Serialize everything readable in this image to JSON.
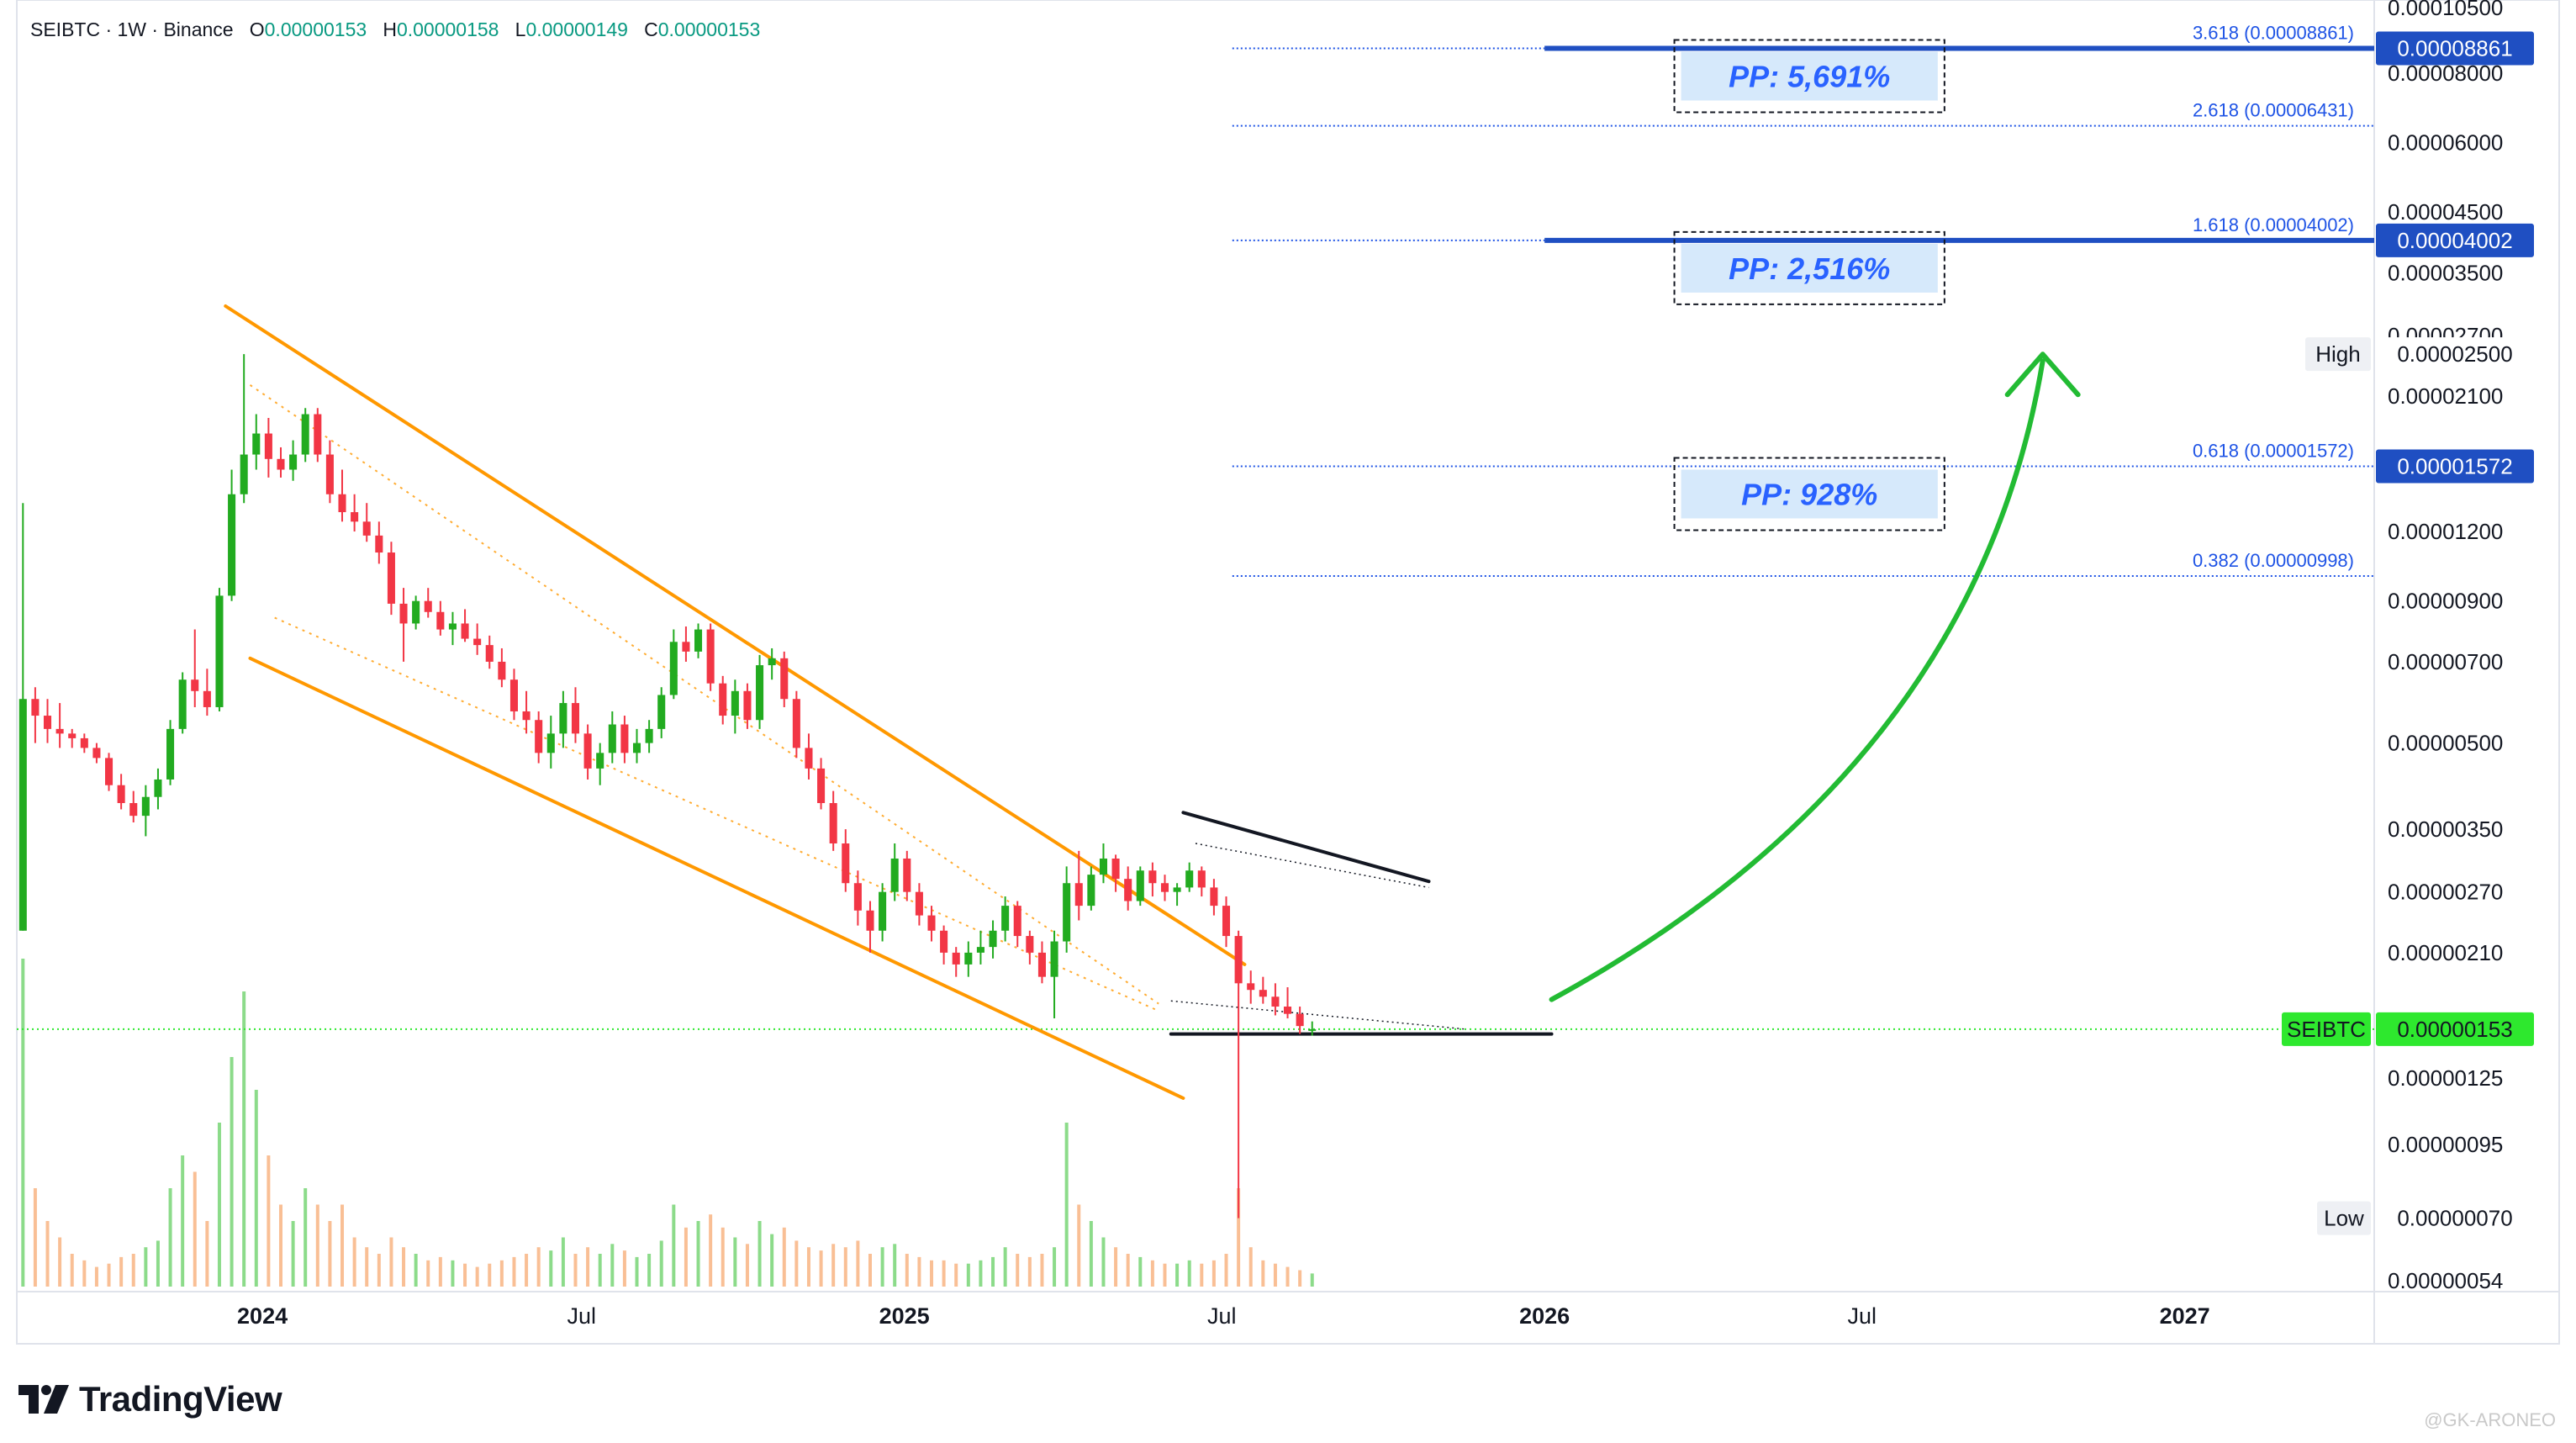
{
  "header": {
    "symbol_line": "SEIBTC · 1W · Binance",
    "open_label": "O",
    "open_value": "0.00000153",
    "high_label": "H",
    "high_value": "0.00000158",
    "low_label": "L",
    "low_value": "0.00000149",
    "close_label": "C",
    "close_value": "0.00000153"
  },
  "branding": {
    "name": "TradingView",
    "watermark": "@GK-ARONEO"
  },
  "colors": {
    "up": "#22ab20",
    "down": "#f23645",
    "channel": "#ff9800",
    "fib": "#1e53e5",
    "fib_thick": "#1f4fc2",
    "current": "#2ee82e",
    "arrow": "#22bb33",
    "pp_text": "#2962ff",
    "pp_bg": "#d6e9fb"
  },
  "chart_data": {
    "type": "candlestick",
    "title": "SEIBTC · 1W · Binance",
    "y_scale": "log",
    "ylim": [
      5.2e-07,
      0.0001075
    ],
    "y_tick_labels": [
      "0.00010500",
      "0.00008000",
      "0.00006000",
      "0.00004500",
      "0.00003500",
      "0.00002700",
      "0.00002100",
      "0.00001200",
      "0.00000900",
      "0.00000700",
      "0.00000500",
      "0.00000350",
      "0.00000270",
      "0.00000210",
      "0.00000125",
      "0.00000095",
      "0.00000054"
    ],
    "x_tick_labels": [
      {
        "date": "2024-01-01",
        "label": "2024",
        "bold": true
      },
      {
        "date": "2024-07-01",
        "label": "Jul",
        "bold": false
      },
      {
        "date": "2025-01-01",
        "label": "2025",
        "bold": true
      },
      {
        "date": "2025-07-01",
        "label": "Jul",
        "bold": false
      },
      {
        "date": "2026-01-01",
        "label": "2026",
        "bold": true
      },
      {
        "date": "2026-07-01",
        "label": "Jul",
        "bold": false
      },
      {
        "date": "2027-01-01",
        "label": "2027",
        "bold": true
      }
    ],
    "x_range": [
      "2023-08-14",
      "2027-04-19"
    ],
    "first_candle_date": "2023-08-14",
    "price_tags": [
      {
        "label": "",
        "value": "0.00008861",
        "style": "blue"
      },
      {
        "label": "",
        "value": "0.00004002",
        "style": "blue"
      },
      {
        "label": "High",
        "value": "0.00002500",
        "style": "plain"
      },
      {
        "label": "",
        "value": "0.00001572",
        "style": "blue"
      },
      {
        "label": "SEIBTC",
        "value": "0.00000153",
        "style": "green"
      },
      {
        "label": "Low",
        "value": "0.00000070",
        "style": "plain"
      }
    ],
    "fib_levels": [
      {
        "label": "3.618 (0.00008861)",
        "value": 8.861e-05,
        "style": "thick"
      },
      {
        "label": "2.618 (0.00006431)",
        "value": 6.431e-05,
        "style": "dotted"
      },
      {
        "label": "1.618 (0.00004002)",
        "value": 4.002e-05,
        "style": "thick"
      },
      {
        "label": "0.618 (0.00001572)",
        "value": 1.572e-05,
        "style": "dotted"
      },
      {
        "label": "0.382 (0.00000998)",
        "value": 9.98e-06,
        "style": "dotted"
      }
    ],
    "pp_boxes": [
      {
        "label": "PP: 5,691%",
        "value": 8.861e-05
      },
      {
        "label": "PP: 2,516%",
        "value": 4.002e-05
      },
      {
        "label": "PP: 928%",
        "value": 1.572e-05
      }
    ],
    "current_price": 1.53e-06,
    "candles": [
      {
        "o": 2.3e-06,
        "h": 1.35e-05,
        "l": 2.3e-06,
        "c": 6e-06,
        "v": 100
      },
      {
        "o": 6e-06,
        "h": 6.3e-06,
        "l": 5e-06,
        "c": 5.6e-06,
        "v": 30
      },
      {
        "o": 5.6e-06,
        "h": 6e-06,
        "l": 5e-06,
        "c": 5.3e-06,
        "v": 20
      },
      {
        "o": 5.3e-06,
        "h": 5.9e-06,
        "l": 4.9e-06,
        "c": 5.2e-06,
        "v": 15
      },
      {
        "o": 5.2e-06,
        "h": 5.3e-06,
        "l": 4.9e-06,
        "c": 5.1e-06,
        "v": 10
      },
      {
        "o": 5.1e-06,
        "h": 5.2e-06,
        "l": 4.8e-06,
        "c": 4.9e-06,
        "v": 8
      },
      {
        "o": 4.9e-06,
        "h": 5e-06,
        "l": 4.6e-06,
        "c": 4.7e-06,
        "v": 6
      },
      {
        "o": 4.7e-06,
        "h": 4.8e-06,
        "l": 4.1e-06,
        "c": 4.2e-06,
        "v": 7
      },
      {
        "o": 4.2e-06,
        "h": 4.4e-06,
        "l": 3.8e-06,
        "c": 3.9e-06,
        "v": 9
      },
      {
        "o": 3.9e-06,
        "h": 4.1e-06,
        "l": 3.6e-06,
        "c": 3.7e-06,
        "v": 10
      },
      {
        "o": 3.7e-06,
        "h": 4.2e-06,
        "l": 3.4e-06,
        "c": 4e-06,
        "v": 12
      },
      {
        "o": 4e-06,
        "h": 4.5e-06,
        "l": 3.8e-06,
        "c": 4.3e-06,
        "v": 14
      },
      {
        "o": 4.3e-06,
        "h": 5.5e-06,
        "l": 4.2e-06,
        "c": 5.3e-06,
        "v": 30
      },
      {
        "o": 5.3e-06,
        "h": 6.7e-06,
        "l": 5.2e-06,
        "c": 6.5e-06,
        "v": 40
      },
      {
        "o": 6.5e-06,
        "h": 8e-06,
        "l": 5.8e-06,
        "c": 6.2e-06,
        "v": 35
      },
      {
        "o": 6.2e-06,
        "h": 6.8e-06,
        "l": 5.6e-06,
        "c": 5.8e-06,
        "v": 20
      },
      {
        "o": 5.8e-06,
        "h": 9.5e-06,
        "l": 5.7e-06,
        "c": 9.2e-06,
        "v": 50
      },
      {
        "o": 9.2e-06,
        "h": 1.55e-05,
        "l": 9e-06,
        "c": 1.4e-05,
        "v": 70
      },
      {
        "o": 1.4e-05,
        "h": 2.5e-05,
        "l": 1.35e-05,
        "c": 1.65e-05,
        "v": 90
      },
      {
        "o": 1.65e-05,
        "h": 1.95e-05,
        "l": 1.55e-05,
        "c": 1.8e-05,
        "v": 60
      },
      {
        "o": 1.8e-05,
        "h": 1.92e-05,
        "l": 1.5e-05,
        "c": 1.62e-05,
        "v": 40
      },
      {
        "o": 1.62e-05,
        "h": 1.7e-05,
        "l": 1.5e-05,
        "c": 1.55e-05,
        "v": 25
      },
      {
        "o": 1.55e-05,
        "h": 1.75e-05,
        "l": 1.48e-05,
        "c": 1.65e-05,
        "v": 20
      },
      {
        "o": 1.65e-05,
        "h": 2e-05,
        "l": 1.6e-05,
        "c": 1.95e-05,
        "v": 30
      },
      {
        "o": 1.95e-05,
        "h": 2e-05,
        "l": 1.6e-05,
        "c": 1.65e-05,
        "v": 25
      },
      {
        "o": 1.65e-05,
        "h": 1.75e-05,
        "l": 1.35e-05,
        "c": 1.4e-05,
        "v": 20
      },
      {
        "o": 1.4e-05,
        "h": 1.55e-05,
        "l": 1.25e-05,
        "c": 1.3e-05,
        "v": 25
      },
      {
        "o": 1.3e-05,
        "h": 1.4e-05,
        "l": 1.2e-05,
        "c": 1.25e-05,
        "v": 15
      },
      {
        "o": 1.25e-05,
        "h": 1.35e-05,
        "l": 1.15e-05,
        "c": 1.18e-05,
        "v": 12
      },
      {
        "o": 1.18e-05,
        "h": 1.25e-05,
        "l": 1.05e-05,
        "c": 1.1e-05,
        "v": 10
      },
      {
        "o": 1.1e-05,
        "h": 1.15e-05,
        "l": 8.5e-06,
        "c": 8.9e-06,
        "v": 15
      },
      {
        "o": 8.9e-06,
        "h": 9.5e-06,
        "l": 7e-06,
        "c": 8.2e-06,
        "v": 12
      },
      {
        "o": 8.2e-06,
        "h": 9.2e-06,
        "l": 8e-06,
        "c": 9e-06,
        "v": 10
      },
      {
        "o": 9e-06,
        "h": 9.5e-06,
        "l": 8.4e-06,
        "c": 8.6e-06,
        "v": 8
      },
      {
        "o": 8.6e-06,
        "h": 9e-06,
        "l": 7.8e-06,
        "c": 8e-06,
        "v": 9
      },
      {
        "o": 8e-06,
        "h": 8.6e-06,
        "l": 7.5e-06,
        "c": 8.2e-06,
        "v": 8
      },
      {
        "o": 8.2e-06,
        "h": 8.7e-06,
        "l": 7.6e-06,
        "c": 7.7e-06,
        "v": 7
      },
      {
        "o": 7.7e-06,
        "h": 8.2e-06,
        "l": 7.2e-06,
        "c": 7.5e-06,
        "v": 6
      },
      {
        "o": 7.5e-06,
        "h": 7.8e-06,
        "l": 6.8e-06,
        "c": 7e-06,
        "v": 7
      },
      {
        "o": 7e-06,
        "h": 7.4e-06,
        "l": 6.3e-06,
        "c": 6.5e-06,
        "v": 8
      },
      {
        "o": 6.5e-06,
        "h": 6.8e-06,
        "l": 5.5e-06,
        "c": 5.7e-06,
        "v": 9
      },
      {
        "o": 5.7e-06,
        "h": 6.2e-06,
        "l": 5.2e-06,
        "c": 5.5e-06,
        "v": 10
      },
      {
        "o": 5.5e-06,
        "h": 5.7e-06,
        "l": 4.6e-06,
        "c": 4.8e-06,
        "v": 12
      },
      {
        "o": 4.8e-06,
        "h": 5.6e-06,
        "l": 4.5e-06,
        "c": 5.2e-06,
        "v": 11
      },
      {
        "o": 5.2e-06,
        "h": 6.2e-06,
        "l": 4.9e-06,
        "c": 5.9e-06,
        "v": 15
      },
      {
        "o": 5.9e-06,
        "h": 6.3e-06,
        "l": 5e-06,
        "c": 5.2e-06,
        "v": 10
      },
      {
        "o": 5.2e-06,
        "h": 5.4e-06,
        "l": 4.3e-06,
        "c": 4.5e-06,
        "v": 12
      },
      {
        "o": 4.5e-06,
        "h": 5e-06,
        "l": 4.2e-06,
        "c": 4.8e-06,
        "v": 10
      },
      {
        "o": 4.8e-06,
        "h": 5.7e-06,
        "l": 4.6e-06,
        "c": 5.4e-06,
        "v": 13
      },
      {
        "o": 5.4e-06,
        "h": 5.6e-06,
        "l": 4.6e-06,
        "c": 4.8e-06,
        "v": 11
      },
      {
        "o": 4.8e-06,
        "h": 5.3e-06,
        "l": 4.6e-06,
        "c": 5e-06,
        "v": 9
      },
      {
        "o": 5e-06,
        "h": 5.5e-06,
        "l": 4.8e-06,
        "c": 5.3e-06,
        "v": 10
      },
      {
        "o": 5.3e-06,
        "h": 6.3e-06,
        "l": 5.1e-06,
        "c": 6.1e-06,
        "v": 14
      },
      {
        "o": 6.1e-06,
        "h": 8e-06,
        "l": 6e-06,
        "c": 7.6e-06,
        "v": 25
      },
      {
        "o": 7.6e-06,
        "h": 8.1e-06,
        "l": 7e-06,
        "c": 7.3e-06,
        "v": 18
      },
      {
        "o": 7.3e-06,
        "h": 8.2e-06,
        "l": 7.1e-06,
        "c": 8e-06,
        "v": 20
      },
      {
        "o": 8e-06,
        "h": 8.2e-06,
        "l": 6.2e-06,
        "c": 6.4e-06,
        "v": 22
      },
      {
        "o": 6.4e-06,
        "h": 6.6e-06,
        "l": 5.4e-06,
        "c": 5.6e-06,
        "v": 18
      },
      {
        "o": 5.6e-06,
        "h": 6.5e-06,
        "l": 5.2e-06,
        "c": 6.2e-06,
        "v": 15
      },
      {
        "o": 6.2e-06,
        "h": 6.4e-06,
        "l": 5.3e-06,
        "c": 5.5e-06,
        "v": 13
      },
      {
        "o": 5.5e-06,
        "h": 7.2e-06,
        "l": 5.3e-06,
        "c": 6.9e-06,
        "v": 20
      },
      {
        "o": 6.9e-06,
        "h": 7.4e-06,
        "l": 6.5e-06,
        "c": 7.1e-06,
        "v": 16
      },
      {
        "o": 7.1e-06,
        "h": 7.3e-06,
        "l": 5.8e-06,
        "c": 6e-06,
        "v": 18
      },
      {
        "o": 6e-06,
        "h": 6.2e-06,
        "l": 4.7e-06,
        "c": 4.9e-06,
        "v": 14
      },
      {
        "o": 4.9e-06,
        "h": 5.2e-06,
        "l": 4.3e-06,
        "c": 4.5e-06,
        "v": 12
      },
      {
        "o": 4.5e-06,
        "h": 4.7e-06,
        "l": 3.8e-06,
        "c": 3.9e-06,
        "v": 11
      },
      {
        "o": 3.9e-06,
        "h": 4.1e-06,
        "l": 3.2e-06,
        "c": 3.3e-06,
        "v": 13
      },
      {
        "o": 3.3e-06,
        "h": 3.5e-06,
        "l": 2.7e-06,
        "c": 2.8e-06,
        "v": 12
      },
      {
        "o": 2.8e-06,
        "h": 2.95e-06,
        "l": 2.35e-06,
        "c": 2.5e-06,
        "v": 14
      },
      {
        "o": 2.5e-06,
        "h": 2.6e-06,
        "l": 2.1e-06,
        "c": 2.3e-06,
        "v": 10
      },
      {
        "o": 2.3e-06,
        "h": 2.8e-06,
        "l": 2.2e-06,
        "c": 2.7e-06,
        "v": 12
      },
      {
        "o": 2.7e-06,
        "h": 3.3e-06,
        "l": 2.6e-06,
        "c": 3.1e-06,
        "v": 13
      },
      {
        "o": 3.1e-06,
        "h": 3.2e-06,
        "l": 2.6e-06,
        "c": 2.7e-06,
        "v": 10
      },
      {
        "o": 2.7e-06,
        "h": 2.8e-06,
        "l": 2.35e-06,
        "c": 2.45e-06,
        "v": 9
      },
      {
        "o": 2.45e-06,
        "h": 2.55e-06,
        "l": 2.2e-06,
        "c": 2.3e-06,
        "v": 8
      },
      {
        "o": 2.3e-06,
        "h": 2.35e-06,
        "l": 2e-06,
        "c": 2.1e-06,
        "v": 8
      },
      {
        "o": 2.1e-06,
        "h": 2.15e-06,
        "l": 1.9e-06,
        "c": 2e-06,
        "v": 7
      },
      {
        "o": 2e-06,
        "h": 2.2e-06,
        "l": 1.9e-06,
        "c": 2.1e-06,
        "v": 7
      },
      {
        "o": 2.1e-06,
        "h": 2.3e-06,
        "l": 2e-06,
        "c": 2.15e-06,
        "v": 8
      },
      {
        "o": 2.15e-06,
        "h": 2.4e-06,
        "l": 2.05e-06,
        "c": 2.3e-06,
        "v": 9
      },
      {
        "o": 2.3e-06,
        "h": 2.65e-06,
        "l": 2.2e-06,
        "c": 2.55e-06,
        "v": 12
      },
      {
        "o": 2.55e-06,
        "h": 2.6e-06,
        "l": 2.15e-06,
        "c": 2.25e-06,
        "v": 10
      },
      {
        "o": 2.25e-06,
        "h": 2.3e-06,
        "l": 2e-06,
        "c": 2.1e-06,
        "v": 9
      },
      {
        "o": 2.1e-06,
        "h": 2.2e-06,
        "l": 1.85e-06,
        "c": 1.9e-06,
        "v": 10
      },
      {
        "o": 1.9e-06,
        "h": 2.3e-06,
        "l": 1.6e-06,
        "c": 2.2e-06,
        "v": 12
      },
      {
        "o": 2.2e-06,
        "h": 3e-06,
        "l": 2.1e-06,
        "c": 2.8e-06,
        "v": 50
      },
      {
        "o": 2.8e-06,
        "h": 3.2e-06,
        "l": 2.4e-06,
        "c": 2.55e-06,
        "v": 25
      },
      {
        "o": 2.55e-06,
        "h": 3e-06,
        "l": 2.5e-06,
        "c": 2.9e-06,
        "v": 20
      },
      {
        "o": 2.9e-06,
        "h": 3.3e-06,
        "l": 2.8e-06,
        "c": 3.1e-06,
        "v": 15
      },
      {
        "o": 3.1e-06,
        "h": 3.15e-06,
        "l": 2.7e-06,
        "c": 2.85e-06,
        "v": 12
      },
      {
        "o": 2.85e-06,
        "h": 3e-06,
        "l": 2.5e-06,
        "c": 2.6e-06,
        "v": 10
      },
      {
        "o": 2.6e-06,
        "h": 3e-06,
        "l": 2.55e-06,
        "c": 2.95e-06,
        "v": 9
      },
      {
        "o": 2.95e-06,
        "h": 3.05e-06,
        "l": 2.65e-06,
        "c": 2.8e-06,
        "v": 8
      },
      {
        "o": 2.8e-06,
        "h": 2.9e-06,
        "l": 2.6e-06,
        "c": 2.7e-06,
        "v": 7
      },
      {
        "o": 2.7e-06,
        "h": 2.8e-06,
        "l": 2.55e-06,
        "c": 2.75e-06,
        "v": 7
      },
      {
        "o": 2.75e-06,
        "h": 3.05e-06,
        "l": 2.7e-06,
        "c": 2.95e-06,
        "v": 8
      },
      {
        "o": 2.95e-06,
        "h": 3e-06,
        "l": 2.65e-06,
        "c": 2.75e-06,
        "v": 7
      },
      {
        "o": 2.75e-06,
        "h": 2.85e-06,
        "l": 2.45e-06,
        "c": 2.55e-06,
        "v": 8
      },
      {
        "o": 2.55e-06,
        "h": 2.65e-06,
        "l": 2.15e-06,
        "c": 2.25e-06,
        "v": 10
      },
      {
        "o": 2.25e-06,
        "h": 2.3e-06,
        "l": 7e-07,
        "c": 1.85e-06,
        "v": 30
      },
      {
        "o": 1.85e-06,
        "h": 1.95e-06,
        "l": 1.7e-06,
        "c": 1.8e-06,
        "v": 12
      },
      {
        "o": 1.8e-06,
        "h": 1.9e-06,
        "l": 1.7e-06,
        "c": 1.75e-06,
        "v": 8
      },
      {
        "o": 1.75e-06,
        "h": 1.85e-06,
        "l": 1.62e-06,
        "c": 1.68e-06,
        "v": 7
      },
      {
        "o": 1.68e-06,
        "h": 1.82e-06,
        "l": 1.6e-06,
        "c": 1.63e-06,
        "v": 6
      },
      {
        "o": 1.63e-06,
        "h": 1.68e-06,
        "l": 1.5e-06,
        "c": 1.55e-06,
        "v": 5
      },
      {
        "o": 1.53e-06,
        "h": 1.58e-06,
        "l": 1.49e-06,
        "c": 1.53e-06,
        "v": 4
      }
    ]
  }
}
